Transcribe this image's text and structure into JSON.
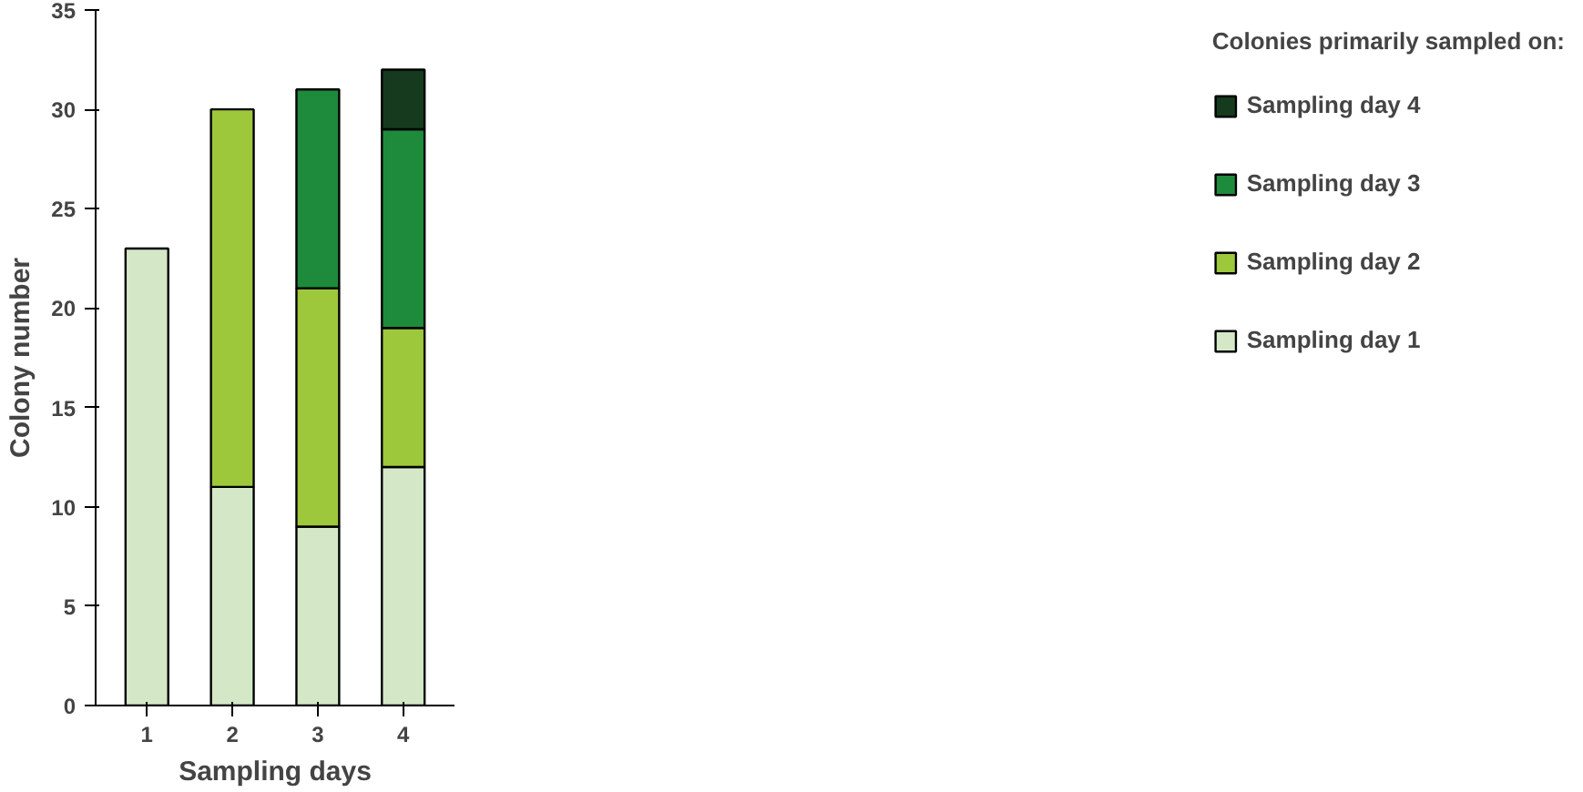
{
  "chart_data": {
    "type": "bar",
    "stacked": true,
    "xlabel": "Sampling days",
    "ylabel": "Colony number",
    "legend_title": "Colonies primarily sampled on:",
    "legend": "right",
    "grid": false,
    "categories": [
      "1",
      "2",
      "3",
      "4"
    ],
    "ylim": [
      0,
      35
    ],
    "yticks": [
      0,
      5,
      10,
      15,
      20,
      25,
      30,
      35
    ],
    "series": [
      {
        "name": "Sampling day 1",
        "color": "#d4e8c8",
        "values": [
          23,
          11,
          9,
          12
        ]
      },
      {
        "name": "Sampling day 2",
        "color": "#9dc83c",
        "values": [
          null,
          19,
          12,
          7
        ]
      },
      {
        "name": "Sampling day 3",
        "color": "#1e8a3c",
        "values": [
          null,
          null,
          10,
          10
        ]
      },
      {
        "name": "Sampling day 4",
        "color": "#163a1e",
        "values": [
          null,
          null,
          null,
          3
        ]
      }
    ]
  }
}
